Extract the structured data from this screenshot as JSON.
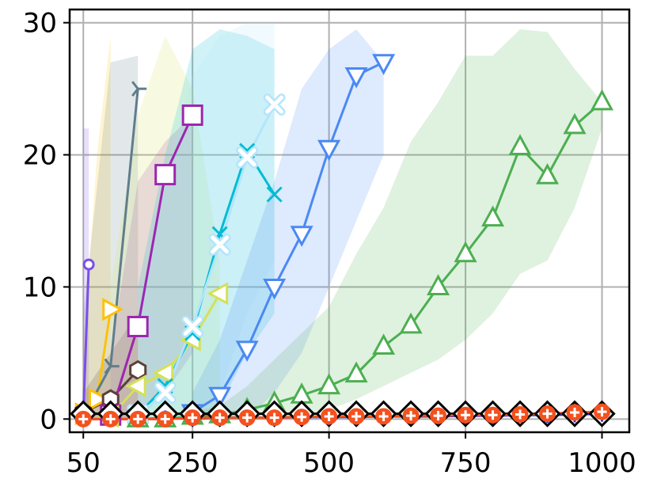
{
  "chart_data": {
    "type": "line",
    "title": "",
    "xlabel": "",
    "ylabel": "",
    "xlim": [
      25,
      1050
    ],
    "ylim": [
      -1,
      31
    ],
    "grid": true,
    "xticks": [
      50,
      250,
      500,
      750,
      1000
    ],
    "xtick_labels": [
      "50",
      "250",
      "500",
      "750",
      "1000"
    ],
    "yticks": [
      0,
      10,
      20,
      30
    ],
    "ytick_labels": [
      "0",
      "10",
      "20",
      "30"
    ],
    "series": [
      {
        "color": "#7b4fe8",
        "marker": "circle-small",
        "x": [
          50,
          60
        ],
        "y": [
          0.3,
          11.7
        ],
        "band": {
          "lower": [
            0,
            0
          ],
          "upper": [
            22,
            22
          ]
        }
      },
      {
        "color": "#ffc107",
        "marker": "triangle-right",
        "x": [
          50,
          75,
          100
        ],
        "y": [
          0.4,
          1.5,
          8.3
        ],
        "band": {
          "lower": [
            0,
            0,
            0
          ],
          "upper": [
            5,
            20,
            29
          ]
        }
      },
      {
        "color": "#607d8b",
        "marker": "tri-right",
        "x": [
          50,
          100,
          150
        ],
        "y": [
          0.2,
          4,
          25
        ],
        "band": {
          "lower": [
            0,
            0,
            0
          ],
          "upper": [
            8,
            27,
            27.5
          ]
        }
      },
      {
        "color": "#5d4037",
        "marker": "hexagon",
        "x": [
          50,
          100,
          150
        ],
        "y": [
          0.5,
          1.5,
          3.7
        ],
        "band": {
          "lower": [
            0,
            0,
            0
          ],
          "upper": [
            2,
            5,
            8
          ]
        }
      },
      {
        "color": "#9c27b0",
        "marker": "square",
        "x": [
          100,
          150,
          200,
          250
        ],
        "y": [
          0.3,
          7,
          18.5,
          23
        ],
        "band": {
          "lower": [
            0,
            0,
            2,
            5
          ],
          "upper": [
            5,
            18,
            21,
            23
          ]
        }
      },
      {
        "color": "#d4e157",
        "marker": "triangle-left",
        "x": [
          100,
          150,
          200,
          250,
          300
        ],
        "y": [
          0.2,
          2.5,
          3.5,
          6,
          9.5
        ],
        "band": {
          "lower": [
            0,
            0,
            0,
            0,
            0
          ],
          "upper": [
            10,
            23,
            29,
            25,
            12
          ]
        }
      },
      {
        "color": "#00bcd4",
        "marker": "x",
        "x": [
          150,
          200,
          250,
          300,
          350,
          400
        ],
        "y": [
          0.3,
          2.5,
          6.5,
          14,
          20.3,
          17
        ],
        "band": {
          "lower": [
            0,
            0,
            0,
            1,
            5,
            8
          ],
          "upper": [
            10,
            20,
            28,
            29.5,
            29,
            28
          ]
        }
      },
      {
        "color": "#b3e5fc",
        "marker": "x-thick",
        "x": [
          150,
          200,
          250,
          300,
          350,
          400
        ],
        "y": [
          0.3,
          2,
          7,
          13.2,
          19.8,
          23.8
        ],
        "band": {
          "lower": [
            0,
            0,
            0,
            2,
            8,
            12
          ],
          "upper": [
            8,
            18,
            26,
            29,
            30,
            30
          ]
        }
      },
      {
        "color": "#4a89f3",
        "marker": "triangle-down",
        "x": [
          250,
          300,
          350,
          400,
          450,
          500,
          550,
          600
        ],
        "y": [
          0.5,
          1.8,
          5.3,
          10,
          14,
          20.5,
          26,
          27
        ],
        "band": {
          "lower": [
            0,
            0,
            0,
            2,
            5,
            10,
            15,
            20
          ],
          "upper": [
            2,
            6,
            12,
            18,
            25,
            28,
            29.5,
            27
          ]
        }
      },
      {
        "color": "#4caf50",
        "marker": "triangle-up",
        "x": [
          150,
          200,
          250,
          300,
          350,
          400,
          450,
          500,
          550,
          600,
          650,
          700,
          750,
          800,
          850,
          900,
          950,
          1000
        ],
        "y": [
          0,
          0,
          0.2,
          0.3,
          0.7,
          1.2,
          1.8,
          2.5,
          3.4,
          5.5,
          7.1,
          10,
          12.5,
          15.2,
          20.6,
          18.4,
          22.2,
          24
        ],
        "band": {
          "lower": [
            0,
            0,
            0,
            0,
            0,
            0,
            0.3,
            0.7,
            1.5,
            2.5,
            3.5,
            4.5,
            6,
            8,
            11,
            12,
            16,
            22
          ],
          "upper": [
            0,
            0,
            0.5,
            1,
            2.5,
            4.5,
            6.5,
            8.5,
            12.5,
            16,
            21,
            24,
            27.5,
            27.5,
            29.5,
            29.3,
            26.5,
            24
          ]
        }
      },
      {
        "color": "#000000",
        "marker": "diamond",
        "x": [
          50,
          100,
          150,
          200,
          250,
          300,
          350,
          400,
          450,
          500,
          550,
          600,
          650,
          700,
          750,
          800,
          850,
          900,
          950,
          1000
        ],
        "y": [
          0.4,
          0.4,
          0.4,
          0.4,
          0.4,
          0.4,
          0.4,
          0.4,
          0.4,
          0.4,
          0.4,
          0.4,
          0.4,
          0.4,
          0.4,
          0.4,
          0.4,
          0.4,
          0.4,
          0.4
        ]
      },
      {
        "color": "#2e2ee6",
        "marker": "plus",
        "x": [
          50,
          100,
          150,
          200,
          250,
          300,
          350,
          400,
          450,
          500,
          550,
          600,
          650,
          700,
          750,
          800,
          850,
          900,
          950,
          1000
        ],
        "y": [
          0,
          0,
          0,
          0.05,
          0.05,
          0.1,
          0.1,
          0.1,
          0.15,
          0.15,
          0.15,
          0.2,
          0.2,
          0.2,
          0.25,
          0.25,
          0.3,
          0.3,
          0.35,
          0.4
        ]
      },
      {
        "color": "#f4511e",
        "marker": "circle-plus",
        "x": [
          50,
          100,
          150,
          200,
          250,
          300,
          350,
          400,
          450,
          500,
          550,
          600,
          650,
          700,
          750,
          800,
          850,
          900,
          950,
          1000
        ],
        "y": [
          0,
          0,
          0,
          0,
          0.1,
          0.1,
          0.1,
          0.1,
          0.15,
          0.2,
          0.2,
          0.2,
          0.25,
          0.25,
          0.3,
          0.3,
          0.35,
          0.4,
          0.5,
          0.55
        ]
      }
    ]
  }
}
